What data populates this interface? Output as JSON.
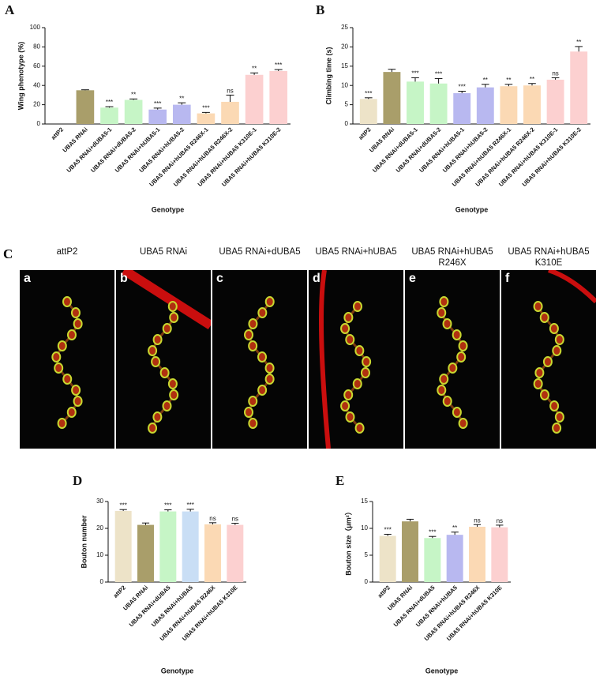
{
  "chart_data": [
    {
      "type": "bar",
      "panel_label": "A",
      "y_label": "Wing phenotype (%)",
      "x_label": "Genotype",
      "categories": [
        "attP2",
        "UBA5 RNAi",
        "UBA5 RNAi+dUBA5-1",
        "UBA5 RNAi+dUBA5-2",
        "UBA5 RNAi+hUBA5-1",
        "UBA5 RNAi+hUBA5-2",
        "UBA5 RNAi+hUBA5 R246X-1",
        "UBA5 RNAi+hUBA5 R246X-2",
        "UBA5 RNAi+hUBA5 K310E-1",
        "UBA5 RNAi+hUBA5 K310E-2"
      ],
      "values": [
        0,
        35,
        17,
        25,
        15,
        20,
        11,
        23,
        51,
        55
      ],
      "errors": [
        0,
        0.5,
        1,
        1,
        1.5,
        2,
        1,
        7,
        2,
        1.5
      ],
      "annotations": [
        null,
        null,
        "***",
        "**",
        "***",
        "**",
        "***",
        "ns",
        "**",
        "***"
      ],
      "colors": [
        "#ede3c8",
        "#a99e6a",
        "#c6f5c6",
        "#c6f5c6",
        "#b8b8f0",
        "#b8b8f0",
        "#fbd9b4",
        "#fbd9b4",
        "#fcd0d0",
        "#fcd0d0"
      ],
      "ylim": [
        0,
        100
      ],
      "yticks": [
        0,
        20,
        40,
        60,
        80,
        100
      ]
    },
    {
      "type": "bar",
      "panel_label": "B",
      "y_label": "Climbing time (s)",
      "x_label": "Genotype",
      "categories": [
        "attP2",
        "UBA5 RNAi",
        "UBA5 RNAi+dUBA5-1",
        "UBA5 RNAi+dUBA5-2",
        "UBA5 RNAi+hUBA5-1",
        "UBA5 RNAi+hUBA5-2",
        "UBA5 RNAi+hUBA5 R246X-1",
        "UBA5 RNAi+hUBA5 R246X-2",
        "UBA5 RNAi+hUBA5 K310E-1",
        "UBA5 RNAi+hUBA5 K310E-2"
      ],
      "values": [
        6.5,
        13.5,
        11,
        10.5,
        8,
        9.5,
        9.8,
        10,
        11.5,
        18.8
      ],
      "errors": [
        0.3,
        0.7,
        1,
        1.3,
        0.5,
        0.8,
        0.5,
        0.5,
        0.5,
        1.3
      ],
      "annotations": [
        "***",
        null,
        "***",
        "***",
        "***",
        "**",
        "**",
        "**",
        "ns",
        "**"
      ],
      "colors": [
        "#ede3c8",
        "#a99e6a",
        "#c6f5c6",
        "#c6f5c6",
        "#b8b8f0",
        "#b8b8f0",
        "#fbd9b4",
        "#fbd9b4",
        "#fcd0d0",
        "#fcd0d0"
      ],
      "ylim": [
        0,
        25
      ],
      "yticks": [
        0,
        5,
        10,
        15,
        20,
        25
      ]
    },
    {
      "type": "bar",
      "panel_label": "D",
      "y_label": "Bouton number",
      "x_label": "Genotype",
      "categories": [
        "attP2",
        "UBA5 RNAi",
        "UBA5 RNAi+dUBA5",
        "UBA5 RNAi+hUBA5",
        "UBA5 RNAi+hUBA5 R246X",
        "UBA5 RNAi+hUBA5 K310E"
      ],
      "values": [
        26.5,
        21.3,
        26.3,
        26.3,
        21.5,
        21.3
      ],
      "errors": [
        0.5,
        0.7,
        0.6,
        0.8,
        0.6,
        0.6
      ],
      "annotations": [
        "***",
        null,
        "***",
        "***",
        "ns",
        "ns"
      ],
      "colors": [
        "#ede3c8",
        "#a99e6a",
        "#c6f5c6",
        "#c9def5",
        "#fbd9b4",
        "#fcd0d0"
      ],
      "ylim": [
        0,
        30
      ],
      "yticks": [
        0,
        10,
        20,
        30
      ]
    },
    {
      "type": "bar",
      "panel_label": "E",
      "y_label": "Bouton size（μm²）",
      "x_label": "Genotype",
      "categories": [
        "attP2",
        "UBA5 RNAi",
        "UBA5 RNAi+dUBA5",
        "UBA5 RNAi+hUBA5",
        "UBA5 RNAi+hUBA5 R246X",
        "UBA5 RNAi+hUBA5 K310E"
      ],
      "values": [
        8.6,
        11.3,
        8.2,
        8.8,
        10.3,
        10.2
      ],
      "errors": [
        0.3,
        0.4,
        0.3,
        0.5,
        0.4,
        0.4
      ],
      "annotations": [
        "***",
        null,
        "***",
        "**",
        "ns",
        "ns"
      ],
      "colors": [
        "#ede3c8",
        "#a99e6a",
        "#c6f5c6",
        "#b8b8f0",
        "#fbd9b4",
        "#fcd0d0"
      ],
      "ylim": [
        0,
        15
      ],
      "yticks": [
        0,
        5,
        10,
        15
      ]
    }
  ],
  "image_panel": {
    "label": "C",
    "images": [
      {
        "letter": "a",
        "title": "attP2"
      },
      {
        "letter": "b",
        "title": "UBA5 RNAi"
      },
      {
        "letter": "c",
        "title": "UBA5 RNAi+dUBA5"
      },
      {
        "letter": "d",
        "title": "UBA5 RNAi+hUBA5"
      },
      {
        "letter": "e",
        "title": "UBA5 RNAi+hUBA5 R246X"
      },
      {
        "letter": "f",
        "title": "UBA5 RNAi+hUBA5 K310E"
      }
    ]
  }
}
